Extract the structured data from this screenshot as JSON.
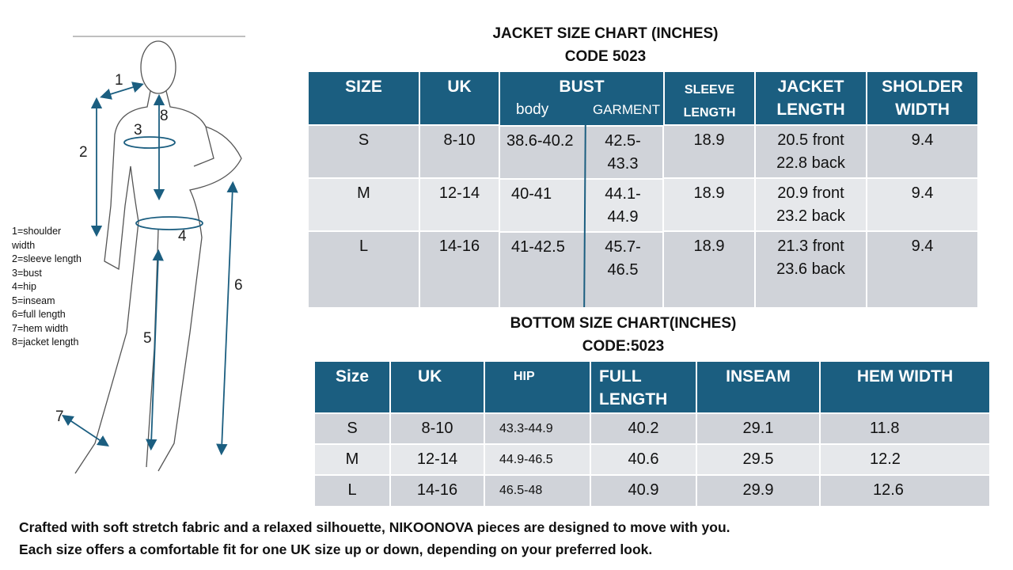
{
  "jacket": {
    "title": "JACKET SIZE CHART (INCHES)",
    "code": "CODE 5023",
    "headers": {
      "size": "SIZE",
      "uk": "UK",
      "bust": "BUST",
      "bust_body": "body",
      "bust_garment": "GARMENT",
      "sleeve": "SLEEVE LENGTH",
      "jacket_length": "JACKET LENGTH",
      "shoulder": "SHOLDER WIDTH"
    },
    "rows": [
      {
        "size": "S",
        "uk": "8-10",
        "body": "38.6-40.2",
        "garment": "42.5- 43.3",
        "sleeve": "18.9",
        "length_front": "20.5 front",
        "length_back": "22.8 back",
        "shoulder": "9.4"
      },
      {
        "size": "M",
        "uk": "12-14",
        "body": "40-41",
        "garment": "44.1- 44.9",
        "sleeve": "18.9",
        "length_front": "20.9 front",
        "length_back": "23.2 back",
        "shoulder": "9.4"
      },
      {
        "size": "L",
        "uk": "14-16",
        "body": "41-42.5",
        "garment": "45.7- 46.5",
        "sleeve": "18.9",
        "length_front": "21.3 front",
        "length_back": "23.6 back",
        "shoulder": "9.4"
      }
    ]
  },
  "bottom": {
    "title": "BOTTOM SIZE CHART(INCHES)",
    "code": "CODE:5023",
    "headers": {
      "size": "Size",
      "uk": "UK",
      "hip": "HIP",
      "full_length": "FULL LENGTH",
      "inseam": "INSEAM",
      "hem": "HEM WIDTH"
    },
    "rows": [
      {
        "size": "S",
        "uk": "8-10",
        "hip": "43.3-44.9",
        "full_length": "40.2",
        "inseam": "29.1",
        "hem": "11.8"
      },
      {
        "size": "M",
        "uk": "12-14",
        "hip": "44.9-46.5",
        "full_length": "40.6",
        "inseam": "29.5",
        "hem": "12.2"
      },
      {
        "size": "L",
        "uk": "14-16",
        "hip": "46.5-48",
        "full_length": "40.9",
        "inseam": "29.9",
        "hem": "12.6"
      }
    ]
  },
  "legend": [
    "1=shoulder width",
    "2=sleeve length",
    "3=bust",
    "4=hip",
    "5=inseam",
    "6=full length",
    "7=hem width",
    "8=jacket length"
  ],
  "figure_labels": [
    "1",
    "2",
    "3",
    "4",
    "5",
    "6",
    "7",
    "8"
  ],
  "footer": [
    "Crafted with soft stretch fabric and a relaxed silhouette, NIKOONOVA pieces are designed to move with you.",
    "Each size offers a comfortable fit for one UK size up or down, depending on your preferred look."
  ],
  "colors": {
    "header": "#1b5e80",
    "row_dark": "#d0d3d9",
    "row_light": "#e6e8eb",
    "arrow": "#1b5e80"
  }
}
